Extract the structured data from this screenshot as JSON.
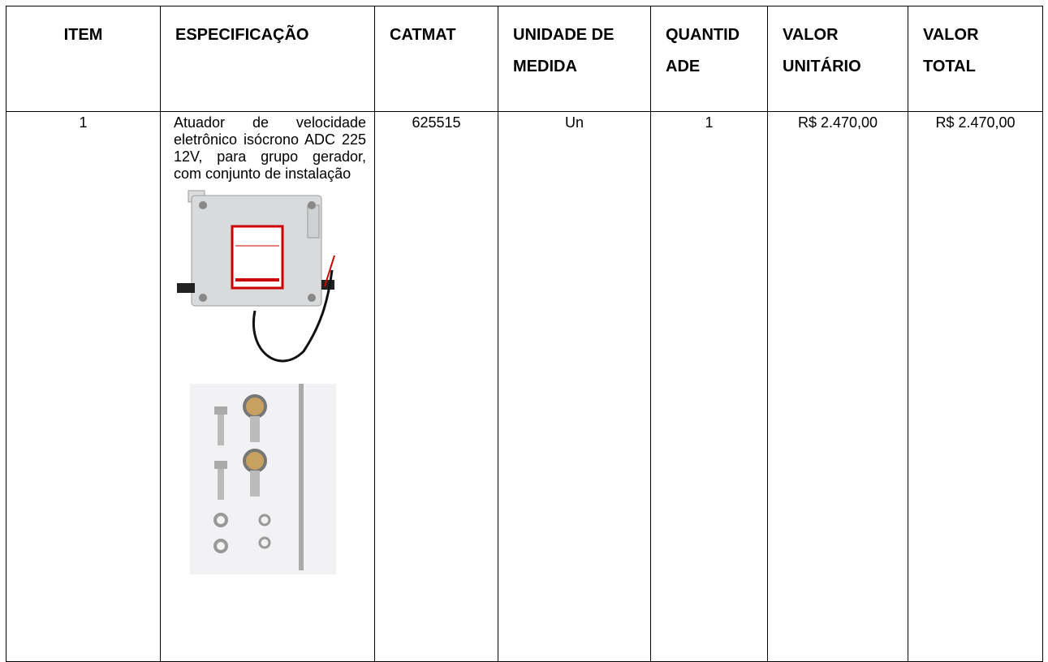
{
  "table": {
    "headers": [
      "ITEM",
      "ESPECIFICAÇÃO",
      "CATMAT",
      "UNIDADE DE MEDIDA",
      "QUANTIDADE",
      "VALOR UNITÁRIO",
      "VALOR TOTAL"
    ],
    "rows": [
      [
        "1",
        "Atuador de velocidade eletrônico isócrono ADC 225 12V, para grupo gerador, com conjunto de instalação",
        "625515",
        "Un",
        "1",
        "R$ 2.470,00",
        "R$ 2.470,00"
      ]
    ]
  }
}
